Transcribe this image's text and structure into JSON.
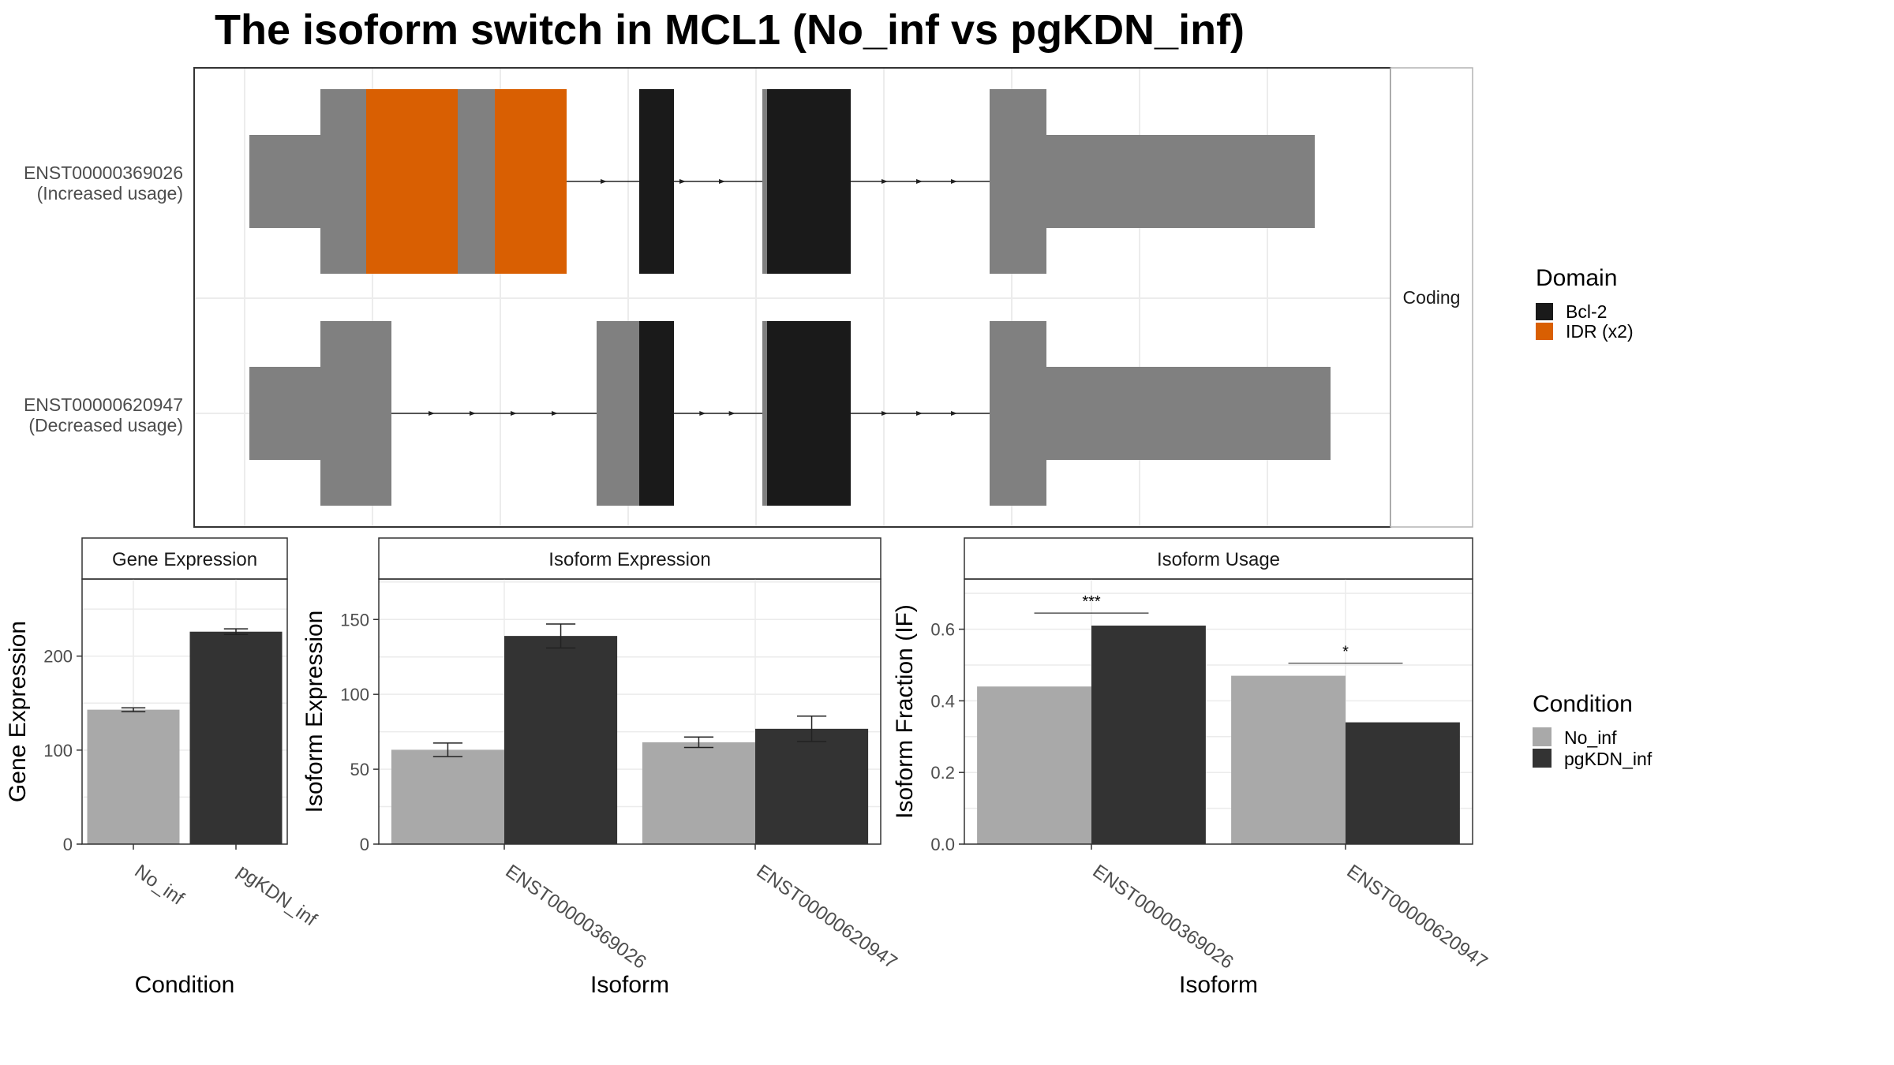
{
  "title": "The isoform switch in MCL1 (No_inf vs pgKDN_inf)",
  "structure": {
    "isoforms": [
      {
        "id": "ENST00000369026",
        "usage": "(Increased usage)",
        "exons": [
          {
            "start": 0,
            "end": 90,
            "h": "utr"
          },
          {
            "start": 90,
            "end": 320,
            "h": "cds"
          },
          {
            "start": 320,
            "end": 400,
            "h": "cds"
          },
          {
            "start": 650,
            "end": 762,
            "h": "cds"
          },
          {
            "start": 938,
            "end": 1010,
            "h": "cds"
          },
          {
            "start": 1010,
            "end": 1350,
            "h": "utr"
          }
        ],
        "domains": [
          {
            "name": "IDR (x2)",
            "start": 148,
            "end": 264
          },
          {
            "name": "IDR (x2)",
            "start": 311,
            "end": 402
          },
          {
            "name": "Bcl-2",
            "start": 494,
            "end": 538
          },
          {
            "name": "Bcl-2",
            "start": 656,
            "end": 762
          }
        ]
      },
      {
        "id": "ENST00000620947",
        "usage": "(Decreased usage)",
        "exons": [
          {
            "start": 0,
            "end": 90,
            "h": "utr"
          },
          {
            "start": 90,
            "end": 180,
            "h": "cds"
          },
          {
            "start": 440,
            "end": 538,
            "h": "cds"
          },
          {
            "start": 650,
            "end": 762,
            "h": "cds"
          },
          {
            "start": 938,
            "end": 1010,
            "h": "cds"
          },
          {
            "start": 1010,
            "end": 1370,
            "h": "utr"
          }
        ],
        "domains": [
          {
            "name": "Bcl-2",
            "start": 494,
            "end": 538
          },
          {
            "name": "Bcl-2",
            "start": 656,
            "end": 762
          }
        ]
      }
    ],
    "strip_label": "Coding",
    "legend_title": "Domain",
    "legend": [
      {
        "name": "Bcl-2",
        "color": "#1a1a1a"
      },
      {
        "name": "IDR (x2)",
        "color": "#d95f02"
      }
    ]
  },
  "colors": {
    "exon": "#808080",
    "no_inf": "#a9a9a9",
    "pgkdn_inf": "#333333"
  },
  "chart_data": [
    {
      "type": "bar",
      "title": "Gene Expression",
      "xlabel": "Condition",
      "ylabel": "Gene Expression",
      "categories": [
        "No_inf",
        "pgKDN_inf"
      ],
      "values": [
        143,
        226
      ],
      "errors": [
        2,
        3
      ],
      "ylim": [
        0,
        282
      ],
      "yticks": [
        0,
        100,
        200
      ],
      "colors": [
        "#a9a9a9",
        "#333333"
      ]
    },
    {
      "type": "bar",
      "title": "Isoform Expression",
      "xlabel": "Isoform",
      "ylabel": "Isoform Expression",
      "categories": [
        "ENST00000369026",
        "ENST00000620947"
      ],
      "series": [
        {
          "name": "No_inf",
          "values": [
            63,
            68
          ],
          "errors": [
            4.5,
            3.5
          ]
        },
        {
          "name": "pgKDN_inf",
          "values": [
            139,
            77
          ],
          "errors": [
            8,
            8.5
          ]
        }
      ],
      "ylim": [
        0,
        177
      ],
      "yticks": [
        0,
        50,
        100,
        150
      ]
    },
    {
      "type": "bar",
      "title": "Isoform Usage",
      "xlabel": "Isoform",
      "ylabel": "Isoform Fraction (IF)",
      "categories": [
        "ENST00000369026",
        "ENST00000620947"
      ],
      "series": [
        {
          "name": "No_inf",
          "values": [
            0.44,
            0.47
          ]
        },
        {
          "name": "pgKDN_inf",
          "values": [
            0.61,
            0.34
          ]
        }
      ],
      "ylim": [
        0,
        0.74
      ],
      "yticks": [
        "0.0",
        "0.2",
        "0.4",
        "0.6"
      ],
      "significance": [
        "***",
        "*"
      ],
      "sig_heights": [
        0.645,
        0.505
      ]
    }
  ],
  "condition_legend": {
    "title": "Condition",
    "items": [
      {
        "name": "No_inf",
        "color": "#a9a9a9"
      },
      {
        "name": "pgKDN_inf",
        "color": "#333333"
      }
    ]
  }
}
